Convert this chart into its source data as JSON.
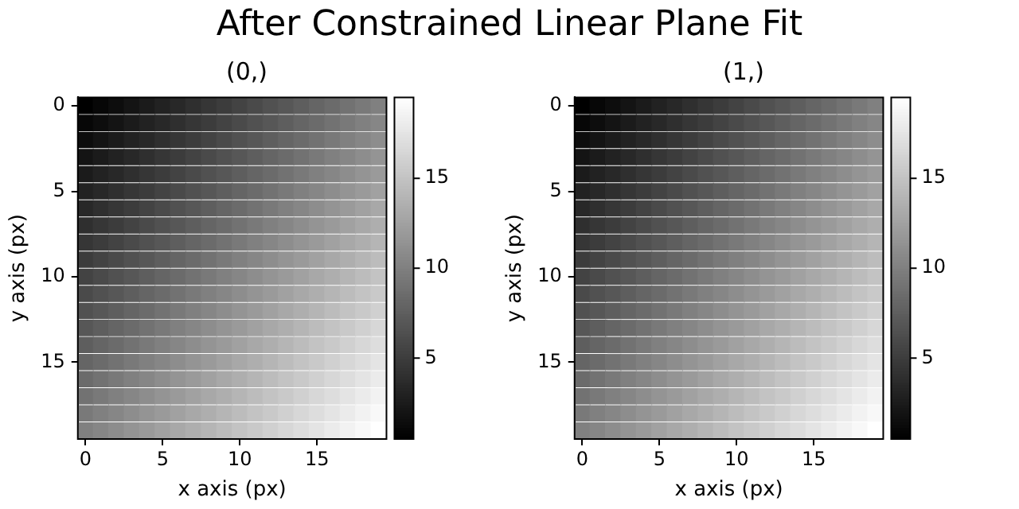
{
  "chart_data": [
    {
      "type": "heatmap",
      "title": "(0,)",
      "xlabel": "x axis (px)",
      "ylabel": "y axis (px)",
      "annotations": [
        "After Constrained Linear Plane Fit"
      ],
      "xlim": [
        -0.5,
        19.5
      ],
      "xticks": [
        0,
        5,
        10,
        15
      ],
      "ylim": [
        19.5,
        -0.5
      ],
      "yticks": [
        0,
        5,
        10,
        15
      ],
      "clim": [
        0.5,
        19.5
      ],
      "cticks": [
        5,
        10,
        15
      ],
      "grid": false,
      "cells": [
        [
          0.5,
          1,
          1.5,
          2,
          2.5,
          3,
          3.5,
          4,
          4.5,
          5,
          5.5,
          6,
          6.5,
          7,
          7.5,
          8,
          8.5,
          9,
          9.5,
          10
        ],
        [
          1,
          1.5,
          2,
          2.5,
          3,
          3.5,
          4,
          4.5,
          5,
          5.5,
          6,
          6.5,
          7,
          7.5,
          8,
          8.5,
          9,
          9.5,
          10,
          10.5
        ],
        [
          1.5,
          2,
          2.5,
          3,
          3.5,
          4,
          4.5,
          5,
          5.5,
          6,
          6.5,
          7,
          7.5,
          8,
          8.5,
          9,
          9.5,
          10,
          10.5,
          11
        ],
        [
          2,
          2.5,
          3,
          3.5,
          4,
          4.5,
          5,
          5.5,
          6,
          6.5,
          7,
          7.5,
          8,
          8.5,
          9,
          9.5,
          10,
          10.5,
          11,
          11.5
        ],
        [
          2.5,
          3,
          3.5,
          4,
          4.5,
          5,
          5.5,
          6,
          6.5,
          7,
          7.5,
          8,
          8.5,
          9,
          9.5,
          10,
          10.5,
          11,
          11.5,
          12
        ],
        [
          3,
          3.5,
          4,
          4.5,
          5,
          5.5,
          6,
          6.5,
          7,
          7.5,
          8,
          8.5,
          9,
          9.5,
          10,
          10.5,
          11,
          11.5,
          12,
          12.5
        ],
        [
          3.5,
          4,
          4.5,
          5,
          5.5,
          6,
          6.5,
          7,
          7.5,
          8,
          8.5,
          9,
          9.5,
          10,
          10.5,
          11,
          11.5,
          12,
          12.5,
          13
        ],
        [
          4,
          4.5,
          5,
          5.5,
          6,
          6.5,
          7,
          7.5,
          8,
          8.5,
          9,
          9.5,
          10,
          10.5,
          11,
          11.5,
          12,
          12.5,
          13,
          13.5
        ],
        [
          4.5,
          5,
          5.5,
          6,
          6.5,
          7,
          7.5,
          8,
          8.5,
          9,
          9.5,
          10,
          10.5,
          11,
          11.5,
          12,
          12.5,
          13,
          13.5,
          14
        ],
        [
          5,
          5.5,
          6,
          6.5,
          7,
          7.5,
          8,
          8.5,
          9,
          9.5,
          10,
          10.5,
          11,
          11.5,
          12,
          12.5,
          13,
          13.5,
          14,
          14.5
        ],
        [
          5.5,
          6,
          6.5,
          7,
          7.5,
          8,
          8.5,
          9,
          9.5,
          10,
          10.5,
          11,
          11.5,
          12,
          12.5,
          13,
          13.5,
          14,
          14.5,
          15
        ],
        [
          6,
          6.5,
          7,
          7.5,
          8,
          8.5,
          9,
          9.5,
          10,
          10.5,
          11,
          11.5,
          12,
          12.5,
          13,
          13.5,
          14,
          14.5,
          15,
          15.5
        ],
        [
          6.5,
          7,
          7.5,
          8,
          8.5,
          9,
          9.5,
          10,
          10.5,
          11,
          11.5,
          12,
          12.5,
          13,
          13.5,
          14,
          14.5,
          15,
          15.5,
          16
        ],
        [
          7,
          7.5,
          8,
          8.5,
          9,
          9.5,
          10,
          10.5,
          11,
          11.5,
          12,
          12.5,
          13,
          13.5,
          14,
          14.5,
          15,
          15.5,
          16,
          16.5
        ],
        [
          7.5,
          8,
          8.5,
          9,
          9.5,
          10,
          10.5,
          11,
          11.5,
          12,
          12.5,
          13,
          13.5,
          14,
          14.5,
          15,
          15.5,
          16,
          16.5,
          17
        ],
        [
          8,
          8.5,
          9,
          9.5,
          10,
          10.5,
          11,
          11.5,
          12,
          12.5,
          13,
          13.5,
          14,
          14.5,
          15,
          15.5,
          16,
          16.5,
          17,
          17.5
        ],
        [
          8.5,
          9,
          9.5,
          10,
          10.5,
          11,
          11.5,
          12,
          12.5,
          13,
          13.5,
          14,
          14.5,
          15,
          15.5,
          16,
          16.5,
          17,
          17.5,
          18
        ],
        [
          9,
          9.5,
          10,
          10.5,
          11,
          11.5,
          12,
          12.5,
          13,
          13.5,
          14,
          14.5,
          15,
          15.5,
          16,
          16.5,
          17,
          17.5,
          18,
          18.5
        ],
        [
          9.5,
          10,
          10.5,
          11,
          11.5,
          12,
          12.5,
          13,
          13.5,
          14,
          14.5,
          15,
          15.5,
          16,
          16.5,
          17,
          17.5,
          18,
          18.5,
          19
        ],
        [
          10,
          10.5,
          11,
          11.5,
          12,
          12.5,
          13,
          13.5,
          14,
          14.5,
          15,
          15.5,
          16,
          16.5,
          17,
          17.5,
          18,
          18.5,
          19,
          19.5
        ]
      ]
    },
    {
      "type": "heatmap",
      "title": "(1,)",
      "xlabel": "x axis (px)",
      "ylabel": "y axis (px)",
      "xlim": [
        -0.5,
        19.5
      ],
      "xticks": [
        0,
        5,
        10,
        15
      ],
      "ylim": [
        19.5,
        -0.5
      ],
      "yticks": [
        0,
        5,
        10,
        15
      ],
      "clim": [
        0.5,
        19.5
      ],
      "cticks": [
        5,
        10,
        15
      ],
      "grid": false,
      "cells": [
        [
          0.5,
          1,
          1.5,
          2,
          2.5,
          3,
          3.5,
          4,
          4.5,
          5,
          5.5,
          6,
          6.5,
          7,
          7.5,
          8,
          8.5,
          9,
          9.5,
          10
        ],
        [
          1,
          1.5,
          2,
          2.5,
          3,
          3.5,
          4,
          4.5,
          5,
          5.5,
          6,
          6.5,
          7,
          7.5,
          8,
          8.5,
          9,
          9.5,
          10,
          10.5
        ],
        [
          1.5,
          2,
          2.5,
          3,
          3.5,
          4,
          4.5,
          5,
          5.5,
          6,
          6.5,
          7,
          7.5,
          8,
          8.5,
          9,
          9.5,
          10,
          10.5,
          11
        ],
        [
          2,
          2.5,
          3,
          3.5,
          4,
          4.5,
          5,
          5.5,
          6,
          6.5,
          7,
          7.5,
          8,
          8.5,
          9,
          9.5,
          10,
          10.5,
          11,
          11.5
        ],
        [
          2.5,
          3,
          3.5,
          4,
          4.5,
          5,
          5.5,
          6,
          6.5,
          7,
          7.5,
          8,
          8.5,
          9,
          9.5,
          10,
          10.5,
          11,
          11.5,
          12
        ],
        [
          3,
          3.5,
          4,
          4.5,
          5,
          5.5,
          6,
          6.5,
          7,
          7.5,
          8,
          8.5,
          9,
          9.5,
          10,
          10.5,
          11,
          11.5,
          12,
          12.5
        ],
        [
          3.5,
          4,
          4.5,
          5,
          5.5,
          6,
          6.5,
          7,
          7.5,
          8,
          8.5,
          9,
          9.5,
          10,
          10.5,
          11,
          11.5,
          12,
          12.5,
          13
        ],
        [
          4,
          4.5,
          5,
          5.5,
          6,
          6.5,
          7,
          7.5,
          8,
          8.5,
          9,
          9.5,
          10,
          10.5,
          11,
          11.5,
          12,
          12.5,
          13,
          13.5
        ],
        [
          4.5,
          5,
          5.5,
          6,
          6.5,
          7,
          7.5,
          8,
          8.5,
          9,
          9.5,
          10,
          10.5,
          11,
          11.5,
          12,
          12.5,
          13,
          13.5,
          14
        ],
        [
          5,
          5.5,
          6,
          6.5,
          7,
          7.5,
          8,
          8.5,
          9,
          9.5,
          10,
          10.5,
          11,
          11.5,
          12,
          12.5,
          13,
          13.5,
          14,
          14.5
        ],
        [
          5.5,
          6,
          6.5,
          7,
          7.5,
          8,
          8.5,
          9,
          9.5,
          10,
          10.5,
          11,
          11.5,
          12,
          12.5,
          13,
          13.5,
          14,
          14.5,
          15
        ],
        [
          6,
          6.5,
          7,
          7.5,
          8,
          8.5,
          9,
          9.5,
          10,
          10.5,
          11,
          11.5,
          12,
          12.5,
          13,
          13.5,
          14,
          14.5,
          15,
          15.5
        ],
        [
          6.5,
          7,
          7.5,
          8,
          8.5,
          9,
          9.5,
          10,
          10.5,
          11,
          11.5,
          12,
          12.5,
          13,
          13.5,
          14,
          14.5,
          15,
          15.5,
          16
        ],
        [
          7,
          7.5,
          8,
          8.5,
          9,
          9.5,
          10,
          10.5,
          11,
          11.5,
          12,
          12.5,
          13,
          13.5,
          14,
          14.5,
          15,
          15.5,
          16,
          16.5
        ],
        [
          7.5,
          8,
          8.5,
          9,
          9.5,
          10,
          10.5,
          11,
          11.5,
          12,
          12.5,
          13,
          13.5,
          14,
          14.5,
          15,
          15.5,
          16,
          16.5,
          17
        ],
        [
          8,
          8.5,
          9,
          9.5,
          10,
          10.5,
          11,
          11.5,
          12,
          12.5,
          13,
          13.5,
          14,
          14.5,
          15,
          15.5,
          16,
          16.5,
          17,
          17.5
        ],
        [
          8.5,
          9,
          9.5,
          10,
          10.5,
          11,
          11.5,
          12,
          12.5,
          13,
          13.5,
          14,
          14.5,
          15,
          15.5,
          16,
          16.5,
          17,
          17.5,
          18
        ],
        [
          9,
          9.5,
          10,
          10.5,
          11,
          11.5,
          12,
          12.5,
          13,
          13.5,
          14,
          14.5,
          15,
          15.5,
          16,
          16.5,
          17,
          17.5,
          18,
          18.5
        ],
        [
          9.5,
          10,
          10.5,
          11,
          11.5,
          12,
          12.5,
          13,
          13.5,
          14,
          14.5,
          15,
          15.5,
          16,
          16.5,
          17,
          17.5,
          18,
          18.5,
          19
        ],
        [
          10,
          10.5,
          11,
          11.5,
          12,
          12.5,
          13,
          13.5,
          14,
          14.5,
          15,
          15.5,
          16,
          16.5,
          17,
          17.5,
          18,
          18.5,
          19,
          19.5
        ]
      ]
    }
  ]
}
